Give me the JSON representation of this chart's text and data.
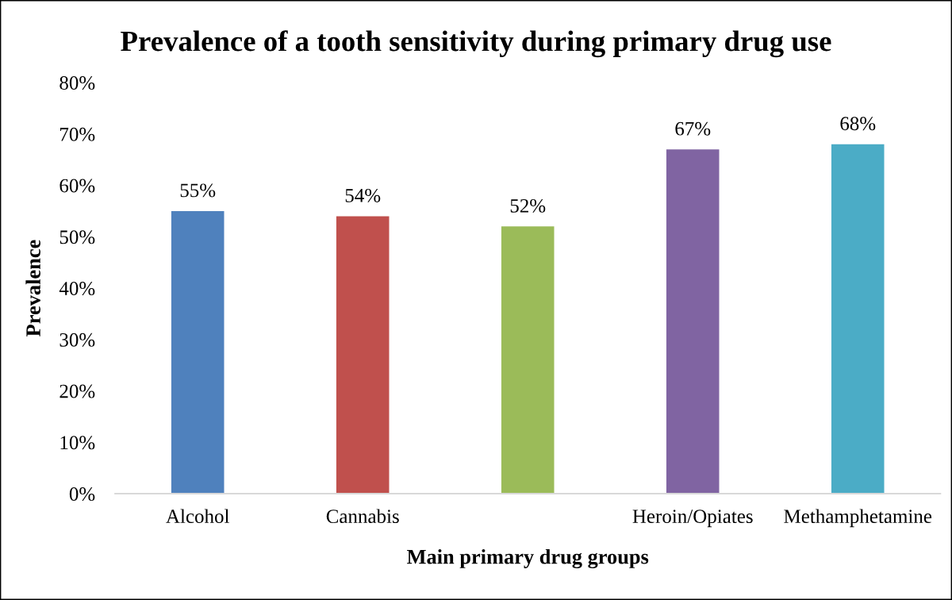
{
  "chart_data": {
    "type": "bar",
    "title": "Prevalence of a tooth sensitivity during primary drug use",
    "xlabel": "Main primary drug groups",
    "ylabel": "Prevalence",
    "categories": [
      "Alcohol",
      "Cannabis",
      null,
      "Heroin/Opiates",
      "Methamphetamine"
    ],
    "values": [
      55,
      54,
      52,
      67,
      68
    ],
    "colors": [
      "#4f81bd",
      "#c0504d",
      "#9bbb59",
      "#8064a2",
      "#4bacc6"
    ],
    "value_labels": [
      "55%",
      "54%",
      "52%",
      "67%",
      "68%"
    ],
    "ylim": [
      0,
      80
    ],
    "yticks": [
      {
        "value": 0,
        "label": "0%"
      },
      {
        "value": 10,
        "label": "10%"
      },
      {
        "value": 20,
        "label": "20%"
      },
      {
        "value": 30,
        "label": "30%"
      },
      {
        "value": 40,
        "label": "40%"
      },
      {
        "value": 50,
        "label": "50%"
      },
      {
        "value": 60,
        "label": "60%"
      },
      {
        "value": 70,
        "label": "70%"
      },
      {
        "value": 80,
        "label": "80%"
      }
    ]
  }
}
